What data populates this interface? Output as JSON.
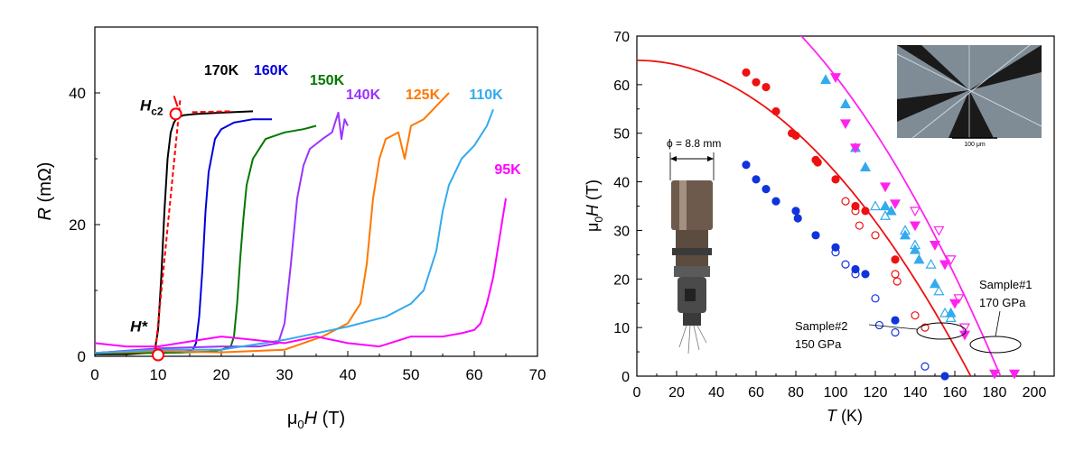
{
  "chart_data": [
    {
      "type": "line",
      "xlabel": {
        "base": "μ",
        "sub": "0",
        "ital": "H",
        "tail": " (T)"
      },
      "ylabel": {
        "ital": "R",
        "tail": " (mΩ)"
      },
      "xlim": [
        0,
        70
      ],
      "ylim": [
        0,
        50
      ],
      "xticks": [
        0,
        10,
        20,
        30,
        40,
        50,
        60,
        70
      ],
      "yticks": [
        0,
        20,
        40
      ],
      "grid": false,
      "series": [
        {
          "name": "170K",
          "color": "#000000",
          "x": [
            0,
            5,
            8,
            9.5,
            10,
            10.5,
            11,
            11.5,
            12,
            12.5,
            13,
            14,
            16,
            20,
            25
          ],
          "y": [
            0.3,
            0.3,
            0.5,
            1,
            4,
            12,
            22,
            30,
            34,
            35.5,
            36.2,
            36.6,
            36.8,
            37,
            37.2
          ]
        },
        {
          "name": "160K",
          "color": "#0000dd",
          "x": [
            0,
            5,
            10,
            14,
            15.5,
            16,
            16.5,
            17,
            17.5,
            18,
            19,
            20,
            22,
            25,
            28
          ],
          "y": [
            0.5,
            0.8,
            0.5,
            0.6,
            1,
            2,
            6,
            13,
            22,
            28,
            33,
            34.5,
            35.5,
            36,
            36
          ]
        },
        {
          "name": "150K",
          "color": "#007700",
          "x": [
            0,
            10,
            18,
            20,
            21.5,
            22,
            22.5,
            23,
            23.5,
            24,
            25,
            27,
            30,
            33,
            35
          ],
          "y": [
            0.5,
            0.5,
            0.7,
            1,
            1.5,
            3,
            8,
            15,
            21,
            26,
            30,
            33,
            34,
            34.5,
            35
          ]
        },
        {
          "name": "140K",
          "color": "#9933ff",
          "x": [
            0,
            10,
            20,
            26,
            29,
            30,
            31,
            32,
            33,
            34,
            36,
            37.5,
            38.5,
            39,
            39.5,
            40
          ],
          "y": [
            0.5,
            1.2,
            1.5,
            1.5,
            2,
            5,
            14,
            24,
            29,
            31.5,
            33,
            34,
            37,
            33,
            36,
            35
          ]
        },
        {
          "name": "125K",
          "color": "#ff7700",
          "x": [
            0,
            10,
            20,
            30,
            36,
            40,
            42,
            43,
            44,
            45,
            46,
            48,
            49,
            50,
            52,
            54,
            56
          ],
          "y": [
            0.5,
            0.8,
            0.6,
            1,
            3,
            5,
            8,
            14,
            24,
            30,
            33,
            34,
            30,
            35,
            36,
            38,
            40
          ]
        },
        {
          "name": "110K",
          "color": "#33aaee",
          "x": [
            0,
            10,
            20,
            30,
            40,
            46,
            50,
            52,
            54,
            55,
            56,
            58,
            60,
            62,
            63
          ],
          "y": [
            0.5,
            1,
            1,
            2.5,
            4.5,
            6,
            8,
            10,
            16,
            22,
            26,
            30,
            32,
            35,
            37.5
          ]
        },
        {
          "name": "95K",
          "color": "#ff00ff",
          "x": [
            0,
            5,
            10,
            20,
            30,
            35,
            40,
            45,
            50,
            55,
            58,
            60,
            61,
            62,
            63,
            64,
            65
          ],
          "y": [
            2,
            1.5,
            1.5,
            3,
            2,
            3,
            2,
            1.5,
            3,
            3,
            3.5,
            4,
            5,
            8,
            12,
            18,
            24
          ]
        }
      ],
      "annotations": {
        "hc2": {
          "base": "H",
          "sub": "c2",
          "x": 12.8,
          "y": 36.8
        },
        "hstar": {
          "label": "H*",
          "x": 10,
          "y": 0.2
        },
        "fit_line": {
          "color": "#ff0000",
          "x1": 9.5,
          "y1": 0,
          "x2": 13.5,
          "y2": 39
        }
      }
    },
    {
      "type": "scatter",
      "xlabel": {
        "ital": "T",
        "tail": " (K)"
      },
      "ylabel": {
        "base": "μ",
        "sub": "0",
        "ital": "H",
        "tail": "  (T)"
      },
      "xlim": [
        0,
        210
      ],
      "ylim": [
        0,
        70
      ],
      "xticks": [
        0,
        20,
        40,
        60,
        80,
        100,
        120,
        140,
        160,
        180,
        200
      ],
      "yticks": [
        0,
        10,
        20,
        30,
        40,
        50,
        60,
        70
      ],
      "grid": false,
      "series": [
        {
          "name": "Sample#2 filled",
          "marker": "circle",
          "filled": true,
          "color": "#ee1111",
          "points": [
            [
              55,
              62.5
            ],
            [
              60,
              60.5
            ],
            [
              65,
              59.5
            ],
            [
              70,
              54.5
            ],
            [
              78,
              50
            ],
            [
              80,
              49.5
            ],
            [
              90,
              44.5
            ],
            [
              91,
              44
            ],
            [
              100,
              40.5
            ],
            [
              110,
              35
            ],
            [
              115,
              34
            ],
            [
              130,
              24
            ]
          ]
        },
        {
          "name": "Sample#2 open",
          "marker": "circle",
          "filled": false,
          "color": "#ee1111",
          "points": [
            [
              105,
              36
            ],
            [
              110,
              34
            ],
            [
              112,
              31
            ],
            [
              120,
              29
            ],
            [
              130,
              21
            ],
            [
              131,
              19.5
            ],
            [
              140,
              12.5
            ],
            [
              145,
              10
            ]
          ]
        },
        {
          "name": "Sample#2 blue filled",
          "marker": "circle",
          "filled": true,
          "color": "#1133dd",
          "points": [
            [
              55,
              43.5
            ],
            [
              60,
              40.5
            ],
            [
              65,
              38.5
            ],
            [
              70,
              36
            ],
            [
              80,
              34
            ],
            [
              81,
              32.5
            ],
            [
              90,
              29
            ],
            [
              100,
              26.5
            ],
            [
              110,
              22
            ],
            [
              115,
              21
            ],
            [
              130,
              11.5
            ],
            [
              155,
              0
            ]
          ]
        },
        {
          "name": "Sample#2 blue open",
          "marker": "circle",
          "filled": false,
          "color": "#1133dd",
          "points": [
            [
              100,
              25.5
            ],
            [
              105,
              23
            ],
            [
              110,
              21
            ],
            [
              120,
              16
            ],
            [
              122,
              10.5
            ],
            [
              130,
              9
            ],
            [
              145,
              2
            ]
          ]
        },
        {
          "name": "Sample#1 triangle up",
          "marker": "tri-up",
          "filled": true,
          "color": "#33aaee",
          "points": [
            [
              95,
              61
            ],
            [
              105,
              56
            ],
            [
              110,
              47
            ],
            [
              115,
              43
            ],
            [
              125,
              35
            ],
            [
              128,
              34
            ],
            [
              135,
              29
            ],
            [
              140,
              26
            ],
            [
              142,
              24
            ],
            [
              150,
              19
            ],
            [
              158,
              13
            ]
          ]
        },
        {
          "name": "Sample#1 triangle up open",
          "marker": "tri-up",
          "filled": false,
          "color": "#33aaee",
          "points": [
            [
              120,
              35
            ],
            [
              125,
              33
            ],
            [
              135,
              30
            ],
            [
              140,
              27
            ],
            [
              148,
              23
            ],
            [
              152,
              17.5
            ],
            [
              155,
              13
            ],
            [
              158,
              12
            ]
          ]
        },
        {
          "name": "Sample#1 triangle down",
          "marker": "tri-down",
          "filled": true,
          "color": "#ff22ee",
          "points": [
            [
              100,
              61.5
            ],
            [
              105,
              52
            ],
            [
              110,
              47
            ],
            [
              125,
              39
            ],
            [
              130,
              35.5
            ],
            [
              140,
              31
            ],
            [
              150,
              27
            ],
            [
              155,
              23
            ],
            [
              160,
              15
            ],
            [
              165,
              8.5
            ],
            [
              180,
              0.5
            ],
            [
              190,
              0.5
            ]
          ]
        },
        {
          "name": "Sample#1 triangle down open",
          "marker": "tri-down",
          "filled": false,
          "color": "#ff22ee",
          "points": [
            [
              140,
              34
            ],
            [
              152,
              30
            ],
            [
              158,
              24
            ],
            [
              162,
              16
            ],
            [
              165,
              10
            ]
          ]
        }
      ],
      "fits": [
        {
          "name": "Sample#2 fit",
          "color": "#ee1111",
          "h0": 65,
          "tc": 168
        },
        {
          "name": "Sample#1 fit",
          "color": "#ff22ee",
          "h0": 88,
          "tc": 183
        }
      ],
      "labels": {
        "sample1": "Sample#1",
        "sample1_pressure": "170 GPa",
        "sample2": "Sample#2",
        "sample2_pressure": "150 GPa",
        "diameter": "ϕ = 8.8 mm",
        "scalebar": "100 μm"
      }
    }
  ],
  "inset_image": {
    "background": "#7f8c96",
    "dark_color": "#1a1a1a",
    "light_color": "#cfd7df"
  },
  "cell_photo": {
    "metal_color": "#6d5a4c",
    "highlight": "#c9b4a0"
  }
}
